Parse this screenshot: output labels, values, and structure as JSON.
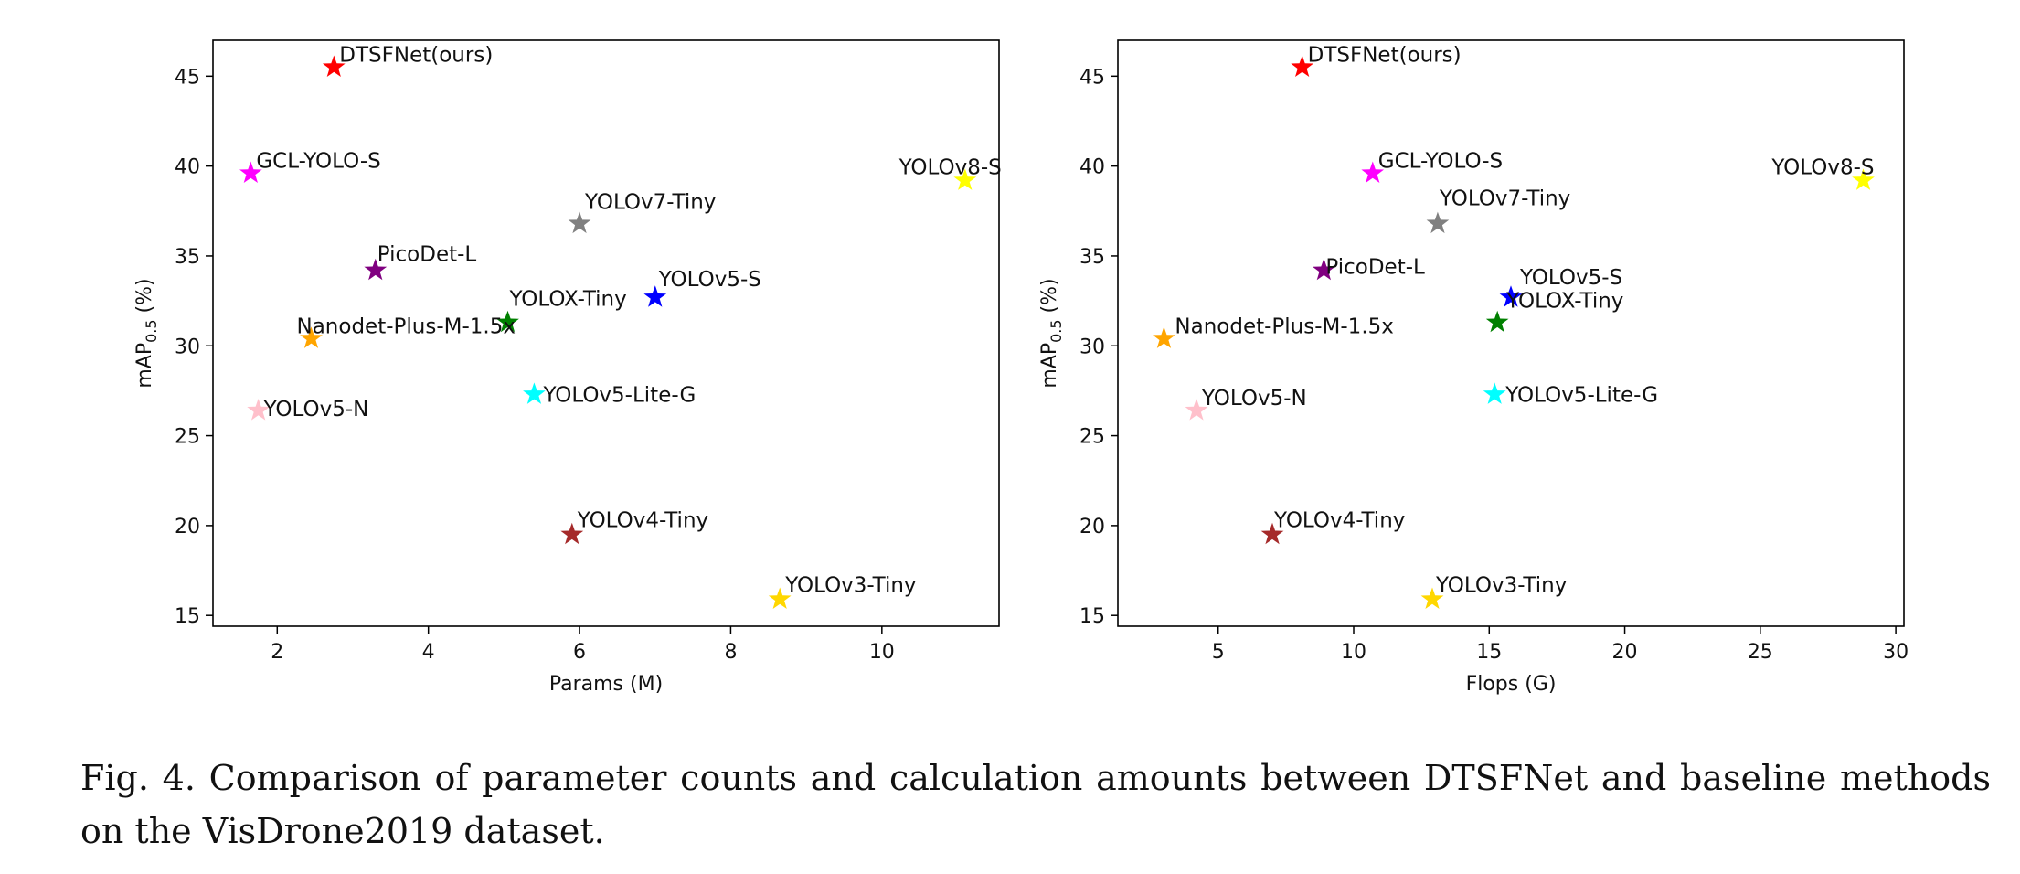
{
  "chart_data": [
    {
      "type": "scatter",
      "xlabel": "Params (M)",
      "ylabel": "mAP",
      "ylabel_subscript": "0.5",
      "ylabel_suffix": " (%)",
      "xlim": [
        1.15,
        11.55
      ],
      "ylim": [
        14.4,
        47.0
      ],
      "xticks": [
        2,
        4,
        6,
        8,
        10
      ],
      "yticks": [
        15,
        20,
        25,
        30,
        35,
        40,
        45
      ],
      "grid": false,
      "marker": "star",
      "points": [
        {
          "label": "DTSFNet(ours)",
          "x": 2.75,
          "y": 45.5,
          "color": "#ff0000"
        },
        {
          "label": "GCL-YOLO-S",
          "x": 1.65,
          "y": 39.6,
          "color": "#ff00ff"
        },
        {
          "label": "YOLOv8-S",
          "x": 11.1,
          "y": 39.2,
          "color": "#ffff00"
        },
        {
          "label": "YOLOv7-Tiny",
          "x": 6.0,
          "y": 36.8,
          "color": "#808080"
        },
        {
          "label": "PicoDet-L",
          "x": 3.3,
          "y": 34.2,
          "color": "#800080"
        },
        {
          "label": "YOLOv5-S",
          "x": 7.0,
          "y": 32.7,
          "color": "#0000ff"
        },
        {
          "label": "YOLOX-Tiny",
          "x": 5.05,
          "y": 31.3,
          "color": "#008000"
        },
        {
          "label": "Nanodet-Plus-M-1.5x",
          "x": 2.45,
          "y": 30.4,
          "color": "#ffa500"
        },
        {
          "label": "YOLOv5-Lite-G",
          "x": 5.4,
          "y": 27.3,
          "color": "#00ffff"
        },
        {
          "label": "YOLOv5-N",
          "x": 1.75,
          "y": 26.4,
          "color": "#ffc0cb"
        },
        {
          "label": "YOLOv4-Tiny",
          "x": 5.9,
          "y": 19.5,
          "color": "#a52a2a"
        },
        {
          "label": "YOLOv3-Tiny",
          "x": 8.65,
          "y": 15.9,
          "color": "#ffd700"
        }
      ]
    },
    {
      "type": "scatter",
      "xlabel": "Flops (G)",
      "ylabel": "mAP",
      "ylabel_subscript": "0.5",
      "ylabel_suffix": " (%)",
      "xlim": [
        1.3,
        30.3
      ],
      "ylim": [
        14.4,
        47.0
      ],
      "xticks": [
        5,
        10,
        15,
        20,
        25,
        30
      ],
      "yticks": [
        15,
        20,
        25,
        30,
        35,
        40,
        45
      ],
      "grid": false,
      "marker": "star",
      "points": [
        {
          "label": "DTSFNet(ours)",
          "x": 8.1,
          "y": 45.5,
          "color": "#ff0000"
        },
        {
          "label": "GCL-YOLO-S",
          "x": 10.7,
          "y": 39.6,
          "color": "#ff00ff"
        },
        {
          "label": "YOLOv8-S",
          "x": 28.8,
          "y": 39.2,
          "color": "#ffff00"
        },
        {
          "label": "YOLOv7-Tiny",
          "x": 13.1,
          "y": 36.8,
          "color": "#808080"
        },
        {
          "label": "PicoDet-L",
          "x": 8.9,
          "y": 34.2,
          "color": "#800080"
        },
        {
          "label": "YOLOv5-S",
          "x": 15.8,
          "y": 32.7,
          "color": "#0000ff"
        },
        {
          "label": "YOLOX-Tiny",
          "x": 15.3,
          "y": 31.3,
          "color": "#008000"
        },
        {
          "label": "Nanodet-Plus-M-1.5x",
          "x": 3.0,
          "y": 30.4,
          "color": "#ffa500"
        },
        {
          "label": "YOLOv5-Lite-G",
          "x": 15.2,
          "y": 27.3,
          "color": "#00ffff"
        },
        {
          "label": "YOLOv5-N",
          "x": 4.2,
          "y": 26.4,
          "color": "#ffc0cb"
        },
        {
          "label": "YOLOv4-Tiny",
          "x": 7.0,
          "y": 19.5,
          "color": "#a52a2a"
        },
        {
          "label": "YOLOv3-Tiny",
          "x": 12.9,
          "y": 15.9,
          "color": "#ffd700"
        }
      ]
    }
  ],
  "caption": "Fig. 4.  Comparison of parameter counts and calculation amounts between DTSFNet and baseline methods on the VisDrone2019 dataset."
}
